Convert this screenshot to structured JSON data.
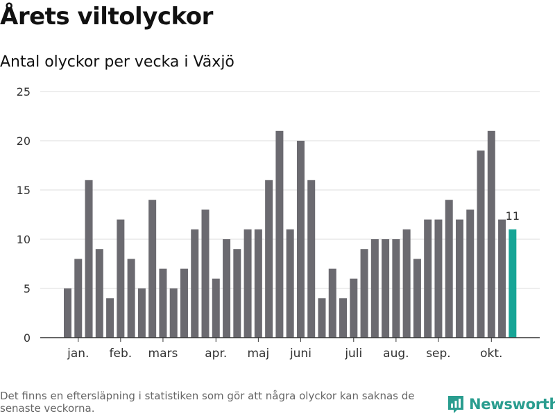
{
  "title": "Årets viltolyckor",
  "subtitle": "Antal olyckor per vecka i Växjö",
  "footnote": "Det finns en eftersläpning i statistiken som gör att några olyckor kan saknas de senaste veckorna.",
  "brand": {
    "name": "Newsworthy",
    "icon": "newsworthy-logo-icon",
    "color": "#2a9d8f"
  },
  "chart_data": {
    "type": "bar",
    "ylim": [
      0,
      25
    ],
    "yticks": [
      0,
      5,
      10,
      15,
      20,
      25
    ],
    "grid": true,
    "month_labels": [
      {
        "label": "jan.",
        "week": 2
      },
      {
        "label": "feb.",
        "week": 6
      },
      {
        "label": "mars",
        "week": 10
      },
      {
        "label": "apr.",
        "week": 15
      },
      {
        "label": "maj",
        "week": 19
      },
      {
        "label": "juni",
        "week": 23
      },
      {
        "label": "juli",
        "week": 28
      },
      {
        "label": "aug.",
        "week": 32
      },
      {
        "label": "sep.",
        "week": 36
      },
      {
        "label": "okt.",
        "week": 41
      }
    ],
    "values": [
      5,
      8,
      16,
      9,
      4,
      12,
      8,
      5,
      14,
      7,
      5,
      7,
      11,
      13,
      6,
      10,
      9,
      11,
      11,
      16,
      21,
      11,
      20,
      16,
      4,
      7,
      4,
      6,
      9,
      10,
      10,
      10,
      11,
      8,
      12,
      12,
      14,
      12,
      13,
      19,
      21,
      12,
      11
    ],
    "bar_color": "#6b6a70",
    "highlight_color": "#16a596",
    "highlight_label": "11",
    "highlight_index": 42
  }
}
